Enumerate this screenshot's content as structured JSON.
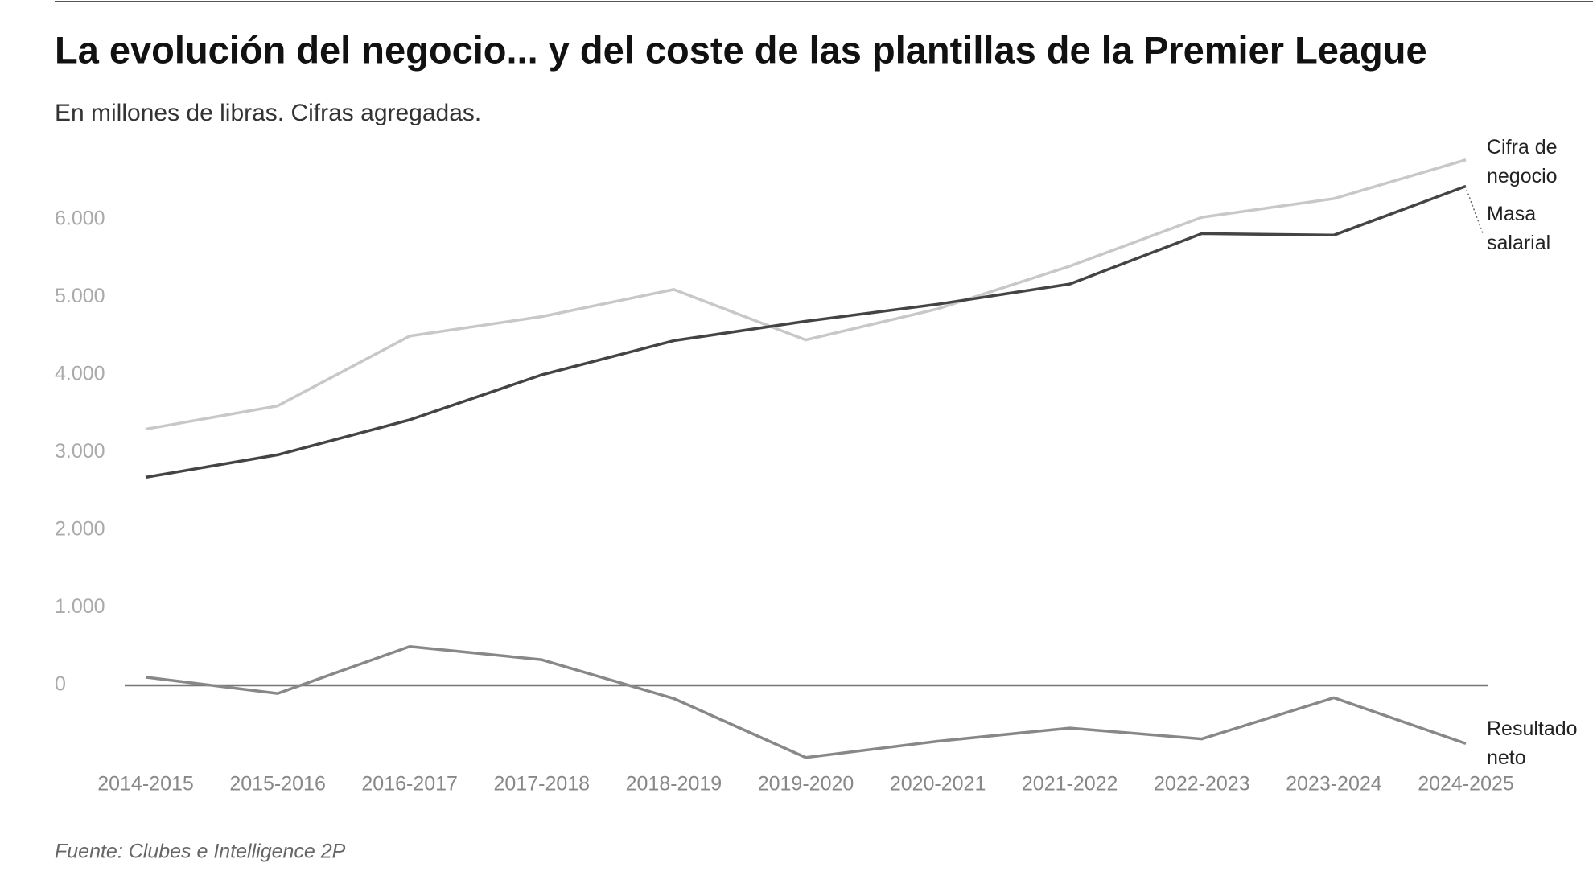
{
  "chart_data": {
    "type": "line",
    "title": "La evolución del negocio... y del coste de las plantillas de la Premier League",
    "subtitle": "En millones de libras. Cifras agregadas.",
    "source": "Fuente: Clubes e Intelligence 2P",
    "categories": [
      "2014-2015",
      "2015-2016",
      "2016-2017",
      "2017-2018",
      "2018-2019",
      "2019-2020",
      "2020-2021",
      "2021-2022",
      "2022-2023",
      "2023-2024",
      "2024-2025"
    ],
    "series": [
      {
        "name": "Cifra de negocio",
        "color": "#c8c8c8",
        "values": [
          3300,
          3600,
          4500,
          4750,
          5100,
          4450,
          4850,
          5400,
          6030,
          6270,
          6770
        ]
      },
      {
        "name": "Masa salarial",
        "color": "#444444",
        "values": [
          2680,
          2970,
          3420,
          4000,
          4440,
          4690,
          4910,
          5170,
          5820,
          5800,
          6430
        ]
      },
      {
        "name": "Resultado neto",
        "color": "#888888",
        "values": [
          105,
          -105,
          500,
          330,
          -170,
          -930,
          -720,
          -550,
          -690,
          -160,
          -750
        ]
      }
    ],
    "ylim": [
      -1000,
      7000
    ],
    "yticks": [
      0,
      {
        "value": 1000,
        "label": "1.000"
      },
      {
        "value": 2000,
        "label": "2.000"
      },
      {
        "value": 3000,
        "label": "3.000"
      },
      {
        "value": 4000,
        "label": "4.000"
      },
      {
        "value": 5000,
        "label": "5.000"
      },
      {
        "value": 6000,
        "label": "6.000"
      }
    ],
    "grid": false
  }
}
